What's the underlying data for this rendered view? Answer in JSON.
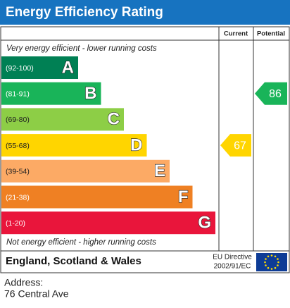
{
  "header": {
    "title": "Energy Efficiency Rating"
  },
  "columns": {
    "current": "Current",
    "potential": "Potential"
  },
  "top_note": "Very energy efficient - lower running costs",
  "bottom_note": "Not energy efficient - higher running costs",
  "bands": [
    {
      "range": "(92-100)",
      "letter": "A",
      "color": "#008054",
      "text_color": "#ffffff"
    },
    {
      "range": "(81-91)",
      "letter": "B",
      "color": "#19b459",
      "text_color": "#ffffff"
    },
    {
      "range": "(69-80)",
      "letter": "C",
      "color": "#8dce46",
      "text_color": "#222222"
    },
    {
      "range": "(55-68)",
      "letter": "D",
      "color": "#ffd500",
      "text_color": "#222222"
    },
    {
      "range": "(39-54)",
      "letter": "E",
      "color": "#fcaa65",
      "text_color": "#222222"
    },
    {
      "range": "(21-38)",
      "letter": "F",
      "color": "#ef8023",
      "text_color": "#ffffff"
    },
    {
      "range": "(1-20)",
      "letter": "G",
      "color": "#e9153b",
      "text_color": "#ffffff"
    }
  ],
  "current": {
    "value": 67,
    "band": 3,
    "color": "#ffd500"
  },
  "potential": {
    "value": 86,
    "band": 1,
    "color": "#19b459"
  },
  "footer": {
    "region": "England, Scotland & Wales",
    "directive_line1": "EU Directive",
    "directive_line2": "2002/91/EC"
  },
  "address": {
    "label": "Address:",
    "value": "76 Central Ave"
  }
}
